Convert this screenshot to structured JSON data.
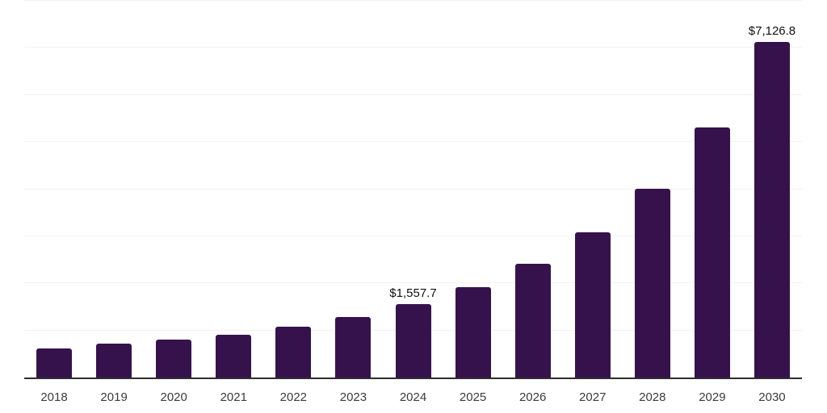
{
  "chart_data": {
    "type": "bar",
    "title": "",
    "xlabel": "",
    "ylabel": "",
    "categories": [
      "2018",
      "2019",
      "2020",
      "2021",
      "2022",
      "2023",
      "2024",
      "2025",
      "2026",
      "2027",
      "2028",
      "2029",
      "2030"
    ],
    "values": [
      610,
      720,
      800,
      900,
      1080,
      1285,
      1557.7,
      1925,
      2410,
      3090,
      4010,
      5310,
      7126.8
    ],
    "data_labels": [
      {
        "category": "2024",
        "text": "$1,557.7"
      },
      {
        "category": "2030",
        "text": "$7,126.8"
      }
    ],
    "ylim": [
      0,
      8000
    ],
    "gridline_step": 1000,
    "grid": true,
    "legend": false,
    "y_axis_labels_visible": false,
    "colors": {
      "bar": "#36124D",
      "axis_line": "#2E2E2E",
      "gridline": "#F2F2F2",
      "tick_label": "#3B3B3B",
      "data_label": "#111111",
      "background": "#FFFFFF"
    }
  }
}
